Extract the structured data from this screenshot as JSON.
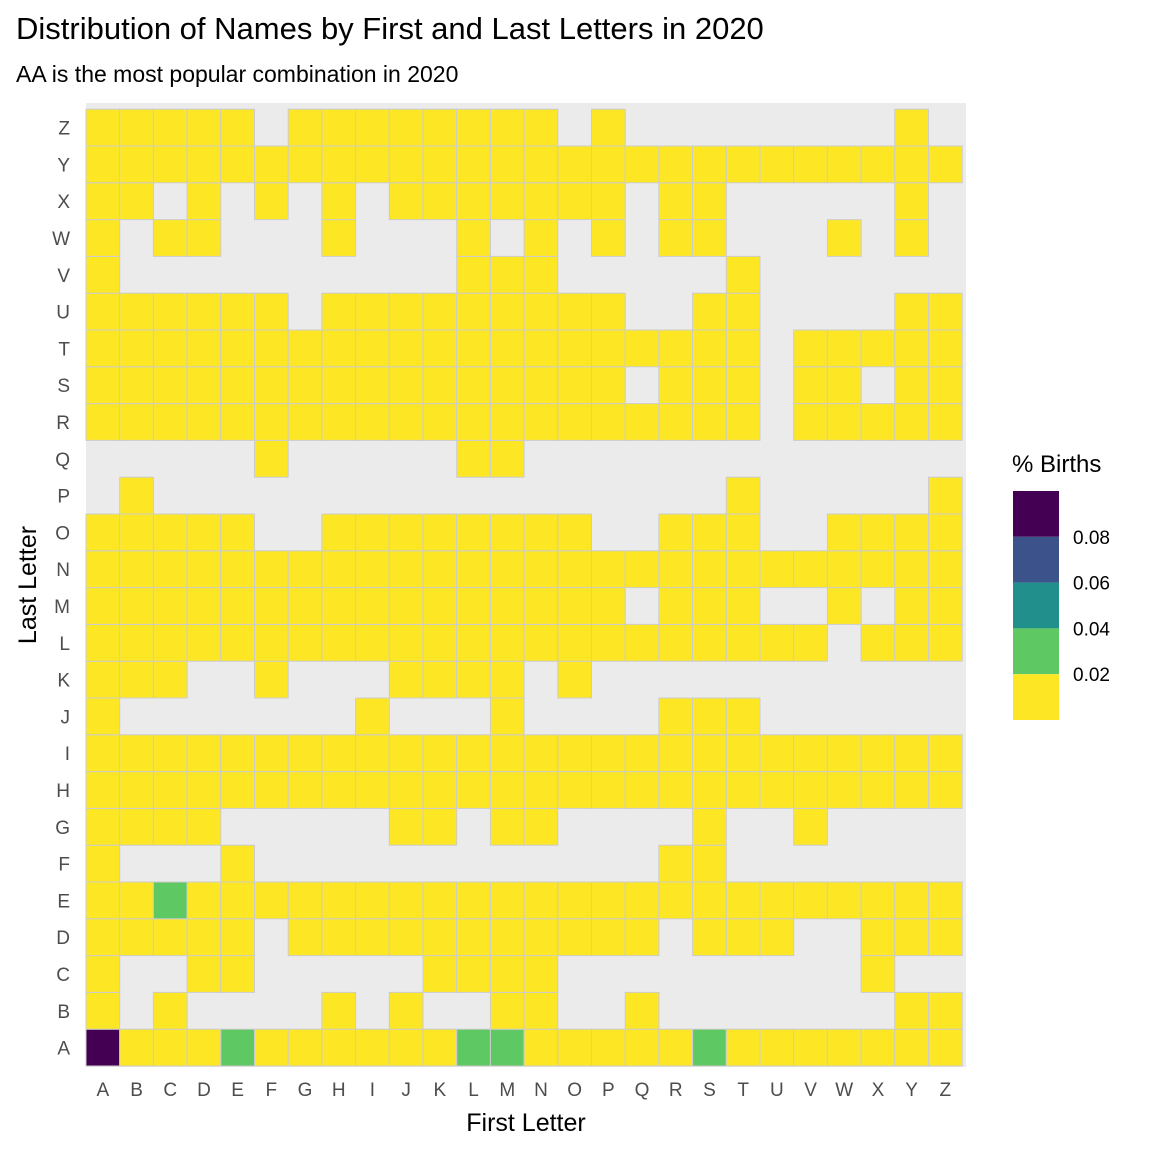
{
  "chart_data": {
    "type": "heatmap",
    "title": "Distribution of Names by First and Last Letters in 2020",
    "subtitle": "AA is the most popular combination in 2020",
    "xlabel": "First Letter",
    "ylabel": "Last Letter",
    "x_categories": [
      "A",
      "B",
      "C",
      "D",
      "E",
      "F",
      "G",
      "H",
      "I",
      "J",
      "K",
      "L",
      "M",
      "N",
      "O",
      "P",
      "Q",
      "R",
      "S",
      "T",
      "U",
      "V",
      "W",
      "X",
      "Y",
      "Z"
    ],
    "y_categories": [
      "A",
      "B",
      "C",
      "D",
      "E",
      "F",
      "G",
      "H",
      "I",
      "J",
      "K",
      "L",
      "M",
      "N",
      "O",
      "P",
      "Q",
      "R",
      "S",
      "T",
      "U",
      "V",
      "W",
      "X",
      "Y",
      "Z"
    ],
    "default_value": 0.01,
    "presence": {
      "A": "11111111111111111111111111",
      "B": "10100001010011001000000011",
      "C": "10011000001111000000000100",
      "D": "11111011111111111011100111",
      "E": "11111111111111111111111111",
      "F": "10001000000000000110000000",
      "G": "11110000011011000010010000",
      "H": "11111111111111111111111111",
      "I": "11111111111111111111111111",
      "J": "10000000100010000111000000",
      "K": "11100100011110100000000000",
      "L": "11111111111111111111110111",
      "M": "11111111111111110111001011",
      "N": "11111111111111111111111111",
      "O": "11111001111111100111001111",
      "P": "01000000000000000001000001",
      "Q": "00000100000110000000000000",
      "R": "11111111111111111111011111",
      "S": "11111111111111110111011011",
      "T": "11111111111111111111011111",
      "U": "11111101111111110011000011",
      "V": "10000000000111000001000000",
      "W": "10110001000101010110001010",
      "X": "11010101011111110110000010",
      "Y": "11111111111111111111111111",
      "Z": "11111011111111010000000010"
    },
    "highlights": [
      {
        "first": "A",
        "last": "A",
        "value": 0.094
      },
      {
        "first": "E",
        "last": "A",
        "value": 0.031
      },
      {
        "first": "L",
        "last": "A",
        "value": 0.031
      },
      {
        "first": "M",
        "last": "A",
        "value": 0.031
      },
      {
        "first": "S",
        "last": "A",
        "value": 0.031
      },
      {
        "first": "C",
        "last": "E",
        "value": 0.031
      }
    ],
    "legend": {
      "title": "% Births",
      "placement": "right",
      "breaks": [
        0.08,
        0.06,
        0.04,
        0.02
      ],
      "break_labels": [
        "0.08",
        "0.06",
        "0.04",
        "0.02"
      ],
      "bins": [
        {
          "min": 0.08,
          "max": 0.1,
          "color": "#440154"
        },
        {
          "min": 0.06,
          "max": 0.08,
          "color": "#3b528b"
        },
        {
          "min": 0.04,
          "max": 0.06,
          "color": "#21908c"
        },
        {
          "min": 0.02,
          "max": 0.04,
          "color": "#5ec962"
        },
        {
          "min": 0.0,
          "max": 0.02,
          "color": "#fde725"
        }
      ]
    },
    "colors": {
      "panel_background": "#ebebeb",
      "tile_border": "#cccccc"
    },
    "grid": false
  }
}
